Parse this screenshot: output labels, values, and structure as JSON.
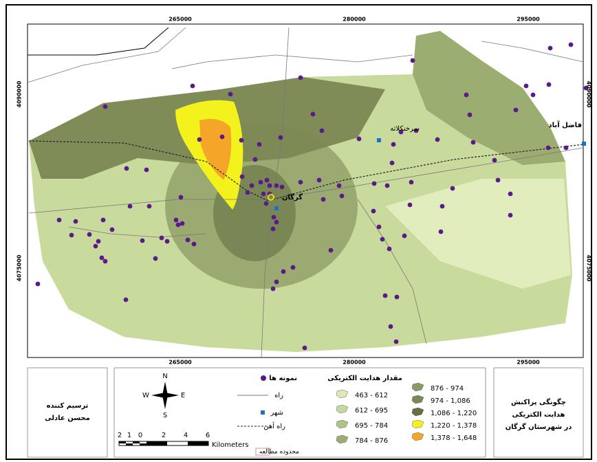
{
  "map": {
    "top_ticks": [
      "265000",
      "280000",
      "295000"
    ],
    "bottom_ticks": [
      "265000",
      "280000",
      "295000"
    ],
    "left_ticks": [
      "4090000",
      "4075000"
    ],
    "right_ticks": [
      "4090000",
      "4075000"
    ],
    "places": [
      "گرگان",
      "سرخنکلاته",
      "فاضل آباد"
    ]
  },
  "legend": {
    "samples": "نمونه ها",
    "road": "راه",
    "city": "شهر",
    "railway": "راه آهن",
    "study_area": "محدوده مطالعه",
    "classes_title": "مقدار هدایت الکتریکی",
    "classes": [
      {
        "label": "463 - 612",
        "color": "#dce9b4"
      },
      {
        "label": "612 - 695",
        "color": "#c6d99c"
      },
      {
        "label": "695 - 784",
        "color": "#b0c386"
      },
      {
        "label": "784 - 876",
        "color": "#9cad72"
      },
      {
        "label": "876 - 974",
        "color": "#8c9b64"
      },
      {
        "label": "974 - 1,086",
        "color": "#7b8855"
      },
      {
        "label": "1,086 - 1,220",
        "color": "#646f42"
      },
      {
        "label": "1,220 - 1,378",
        "color": "#f3f21c"
      },
      {
        "label": "1,378 - 1,648",
        "color": "#f5a629"
      }
    ]
  },
  "scale": {
    "numbers": [
      "2",
      "1",
      "0",
      "2",
      "4",
      "6"
    ],
    "unit": "Kilometers"
  },
  "compass": {
    "n": "N",
    "e": "E",
    "s": "S",
    "w": "W"
  },
  "credit": {
    "label": "ترسیم کننده",
    "name": "محسن عادلی"
  },
  "title": {
    "lines": [
      "چگونگی پراکنش",
      "هدایت الکتریکی",
      "در شهرستان گرگان"
    ]
  }
}
